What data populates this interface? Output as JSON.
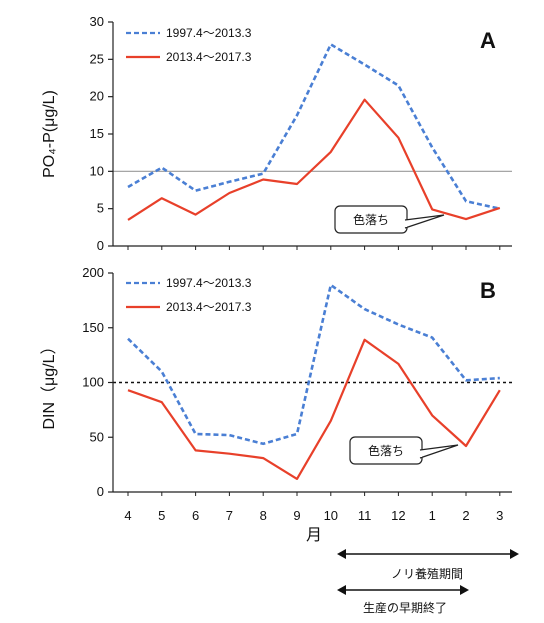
{
  "chart_data": [
    {
      "type": "line",
      "panel_label": "A",
      "ylabel": "PO₄-P(μg/L)",
      "ylim": [
        0,
        30
      ],
      "yticks": [
        0,
        5,
        10,
        15,
        20,
        25,
        30
      ],
      "reference_line": 10,
      "categories": [
        "4",
        "5",
        "6",
        "7",
        "8",
        "9",
        "10",
        "11",
        "12",
        "1",
        "2",
        "3"
      ],
      "series": [
        {
          "name": "1997.4～2013.3",
          "style": "dashed",
          "color": "#4a7fd4",
          "values": [
            7.9,
            10.5,
            7.4,
            8.6,
            9.7,
            17.5,
            27.0,
            24.3,
            21.5,
            13.2,
            6.0,
            5.0
          ]
        },
        {
          "name": "2013.4～2017.3",
          "style": "solid",
          "color": "#e8402a",
          "values": [
            3.5,
            6.4,
            4.2,
            7.1,
            8.9,
            8.3,
            12.6,
            19.6,
            14.5,
            4.9,
            3.6,
            5.1
          ]
        }
      ],
      "callout": "色落ち"
    },
    {
      "type": "line",
      "panel_label": "B",
      "ylabel": "DIN（μg/L）",
      "ylim": [
        0,
        200
      ],
      "yticks": [
        0,
        50,
        100,
        150,
        200
      ],
      "reference_line": 100,
      "categories": [
        "4",
        "5",
        "6",
        "7",
        "8",
        "9",
        "10",
        "11",
        "12",
        "1",
        "2",
        "3"
      ],
      "xlabel": "月",
      "series": [
        {
          "name": "1997.4～2013.3",
          "style": "dashed",
          "color": "#4a7fd4",
          "values": [
            140,
            110,
            53,
            52,
            44,
            53,
            189,
            167,
            153,
            141,
            102,
            104
          ]
        },
        {
          "name": "2013.4～2017.3",
          "style": "solid",
          "color": "#e8402a",
          "values": [
            93,
            82,
            38,
            35,
            31,
            12,
            65,
            139,
            117,
            70,
            42,
            93
          ]
        }
      ],
      "callout": "色落ち"
    }
  ],
  "annotations": {
    "period1": "ノリ養殖期間",
    "period2": "生産の早期終了"
  }
}
